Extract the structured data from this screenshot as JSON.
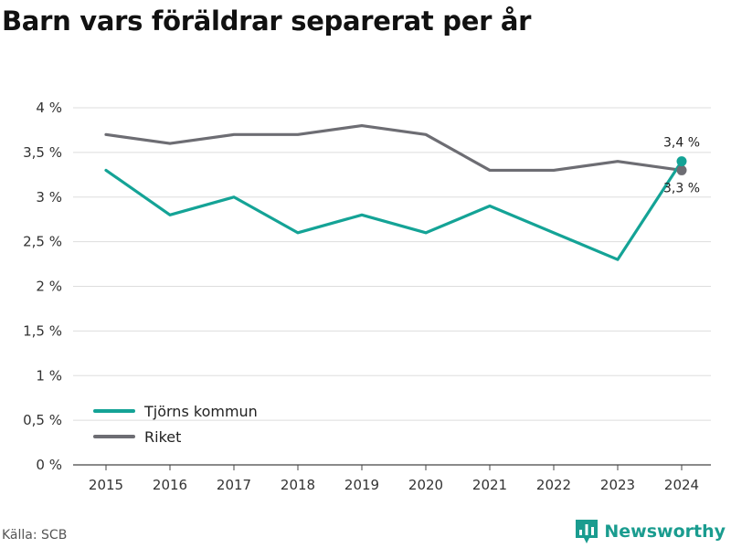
{
  "title": "Barn vars föräldrar separerat per år",
  "source": "Källa: SCB",
  "brand": "Newsworthy",
  "colors": {
    "primary": "#14a396",
    "secondary": "#6d6d73",
    "grid": "#dddddd"
  },
  "chart_data": {
    "type": "line",
    "title": "Barn vars föräldrar separerat per år",
    "x": [
      "2015",
      "2016",
      "2017",
      "2018",
      "2019",
      "2020",
      "2021",
      "2022",
      "2023",
      "2024"
    ],
    "ylim": [
      0,
      4
    ],
    "y_ticks": [
      0,
      0.5,
      1,
      1.5,
      2,
      2.5,
      3,
      3.5,
      4
    ],
    "y_tick_labels": [
      "0 %",
      "0,5 %",
      "1 %",
      "1,5 %",
      "2 %",
      "2,5 %",
      "3 %",
      "3,5 %",
      "4 %"
    ],
    "grid": true,
    "legend_position": "bottom-left",
    "series": [
      {
        "name": "Tjörns kommun",
        "color": "#14a396",
        "values": [
          3.3,
          2.8,
          3.0,
          2.6,
          2.8,
          2.6,
          2.9,
          2.6,
          2.3,
          3.4
        ],
        "end_label": "3,4 %"
      },
      {
        "name": "Riket",
        "color": "#6d6d73",
        "values": [
          3.7,
          3.6,
          3.7,
          3.7,
          3.8,
          3.7,
          3.3,
          3.3,
          3.4,
          3.3
        ],
        "end_label": "3,3 %"
      }
    ]
  }
}
